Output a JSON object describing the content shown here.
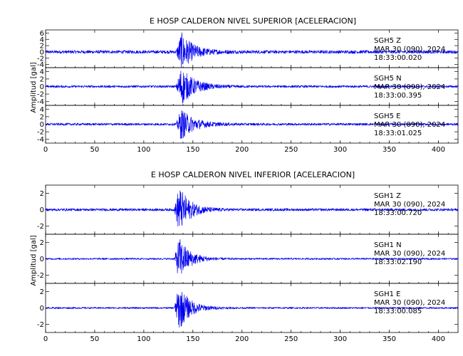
{
  "chart_data": [
    {
      "type": "line",
      "title": "E HOSP CALDERON NIVEL SUPERIOR [ACELERACION]",
      "ylabel": "Amplitud [gal]",
      "xlim": [
        0,
        420
      ],
      "x_ticks": [
        0,
        50,
        100,
        150,
        200,
        250,
        300,
        350,
        400
      ],
      "series": [
        {
          "name": "SGH5 Z",
          "station": "SGH5",
          "component": "Z",
          "date_label": "MAR 30 (090), 2024",
          "time_label": "18:33:00.020",
          "ylim": [
            -5,
            7
          ],
          "y_ticks": [
            -4,
            -2,
            0,
            2,
            4,
            6
          ],
          "arrival_x": 133,
          "peak_x": 138,
          "peak_amplitude": 6,
          "noise_amplitude": 0.5,
          "decay": 12
        },
        {
          "name": "SGH5 N",
          "station": "SGH5",
          "component": "N",
          "date_label": "MAR 30 (090), 2024",
          "time_label": "18:33:00.395",
          "ylim": [
            -5,
            5
          ],
          "y_ticks": [
            -4,
            -2,
            0,
            2,
            4
          ],
          "arrival_x": 133,
          "peak_x": 138,
          "peak_amplitude": 5,
          "noise_amplitude": 0.3,
          "decay": 13
        },
        {
          "name": "SGH5 E",
          "station": "SGH5",
          "component": "E",
          "date_label": "MAR 30 (090), 2024",
          "time_label": "18:33:01.025",
          "ylim": [
            -5,
            5
          ],
          "y_ticks": [
            -4,
            -2,
            0,
            2,
            4
          ],
          "arrival_x": 133,
          "peak_x": 138,
          "peak_amplitude": 4,
          "noise_amplitude": 0.3,
          "decay": 13
        }
      ]
    },
    {
      "type": "line",
      "title": "E HOSP CALDERON NIVEL INFERIOR [ACELERACION]",
      "ylabel": "Amplitud [gal]",
      "xlim": [
        0,
        420
      ],
      "x_ticks": [
        0,
        50,
        100,
        150,
        200,
        250,
        300,
        350,
        400
      ],
      "series": [
        {
          "name": "SGH1 Z",
          "station": "SGH1",
          "component": "Z",
          "date_label": "MAR 30 (090), 2024",
          "time_label": "18:33:00.720",
          "ylim": [
            -3,
            3
          ],
          "y_ticks": [
            -2,
            0,
            2
          ],
          "arrival_x": 131,
          "peak_x": 136,
          "peak_amplitude": 2.8,
          "noise_amplitude": 0.15,
          "decay": 11
        },
        {
          "name": "SGH1 N",
          "station": "SGH1",
          "component": "N",
          "date_label": "MAR 30 (090), 2024",
          "time_label": "18:33:02.190",
          "ylim": [
            -3,
            3
          ],
          "y_ticks": [
            -2,
            0,
            2
          ],
          "arrival_x": 131,
          "peak_x": 136,
          "peak_amplitude": 2.6,
          "noise_amplitude": 0.1,
          "decay": 11
        },
        {
          "name": "SGH1 E",
          "station": "SGH1",
          "component": "E",
          "date_label": "MAR 30 (090), 2024",
          "time_label": "18:33:00.085",
          "ylim": [
            -3,
            3
          ],
          "y_ticks": [
            -2,
            0,
            2
          ],
          "arrival_x": 131,
          "peak_x": 136,
          "peak_amplitude": 2.7,
          "noise_amplitude": 0.1,
          "decay": 11
        }
      ]
    }
  ],
  "colors": {
    "trace": "#0000ee",
    "frame": "#000000"
  }
}
